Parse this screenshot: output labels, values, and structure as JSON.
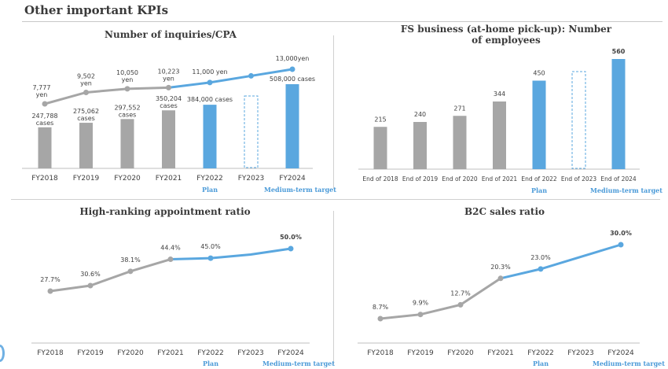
{
  "page": {
    "title": "Other important KPIs"
  },
  "colors": {
    "gray": "#a6a6a6",
    "blue": "#5aa7df",
    "blue_text": "#4a9ad8",
    "dark_text": "#404040"
  },
  "annotations": {
    "plan": "Plan",
    "target": "Medium-term target"
  },
  "chart_data": [
    {
      "id": "inquiries",
      "type": "bar+line",
      "title": "Number of inquiries/CPA",
      "categories": [
        "FY2018",
        "FY2019",
        "FY2020",
        "FY2021",
        "FY2022",
        "FY2023",
        "FY2024"
      ],
      "series": [
        {
          "name": "cases",
          "type": "bar",
          "values": [
            247788,
            275062,
            297552,
            350204,
            384000,
            null,
            508000
          ],
          "labels": [
            "247,788\ncases",
            "275,062\ncases",
            "297,552\ncases",
            "350,204\ncases",
            "384,000 cases",
            "",
            "508,000 cases"
          ],
          "styles": [
            "gray",
            "gray",
            "gray",
            "gray",
            "blue",
            "dashed",
            "blue"
          ]
        },
        {
          "name": "yen",
          "type": "line",
          "values": [
            7777,
            9502,
            10050,
            10223,
            11000,
            12000,
            13000
          ],
          "labels": [
            "7,777\nyen",
            "9,502\nyen",
            "10,050\nyen",
            "10,223\nyen",
            "11,000 yen",
            "",
            "13,000yen"
          ]
        }
      ],
      "notes": [
        "",
        "",
        "",
        "",
        "Plan",
        "",
        "Medium-term target"
      ]
    },
    {
      "id": "employees",
      "type": "bar",
      "title": "FS business (at-home pick-up): Number of employees",
      "title_lines": [
        "FS business (at-home pick-up): Number",
        "of employees"
      ],
      "categories": [
        "End of 2018",
        "End of 2019",
        "End of 2020",
        "End of 2021",
        "End of 2022",
        "End of 2023",
        "End of 2024"
      ],
      "values": [
        215,
        240,
        271,
        344,
        450,
        null,
        560
      ],
      "labels": [
        "215",
        "240",
        "271",
        "344",
        "450",
        "",
        "560"
      ],
      "styles": [
        "gray",
        "gray",
        "gray",
        "gray",
        "blue",
        "dashed",
        "blue"
      ],
      "notes": [
        "",
        "",
        "",
        "",
        "Plan",
        "",
        "Medium-term target"
      ]
    },
    {
      "id": "appointment",
      "type": "line",
      "title": "High-ranking appointment ratio",
      "categories": [
        "FY2018",
        "FY2019",
        "FY2020",
        "FY2021",
        "FY2022",
        "FY2023",
        "FY2024"
      ],
      "values": [
        27.7,
        30.6,
        38.1,
        44.4,
        45.0,
        46.9,
        50.0
      ],
      "labels": [
        "27.7%",
        "30.6%",
        "38.1%",
        "44.4%",
        "45.0%",
        "",
        "50.0%"
      ],
      "notes": [
        "",
        "",
        "",
        "",
        "Plan",
        "",
        "Medium-term target"
      ]
    },
    {
      "id": "b2c",
      "type": "line",
      "title": "B2C sales ratio",
      "categories": [
        "FY2018",
        "FY2019",
        "FY2020",
        "FY2021",
        "FY2022",
        "FY2023",
        "FY2024"
      ],
      "values": [
        8.7,
        9.9,
        12.7,
        20.3,
        23.0,
        26.5,
        30.0
      ],
      "labels": [
        "8.7%",
        "9.9%",
        "12.7%",
        "20.3%",
        "23.0%",
        "",
        "30.0%"
      ],
      "notes": [
        "",
        "",
        "",
        "",
        "Plan",
        "",
        "Medium-term target"
      ]
    }
  ]
}
